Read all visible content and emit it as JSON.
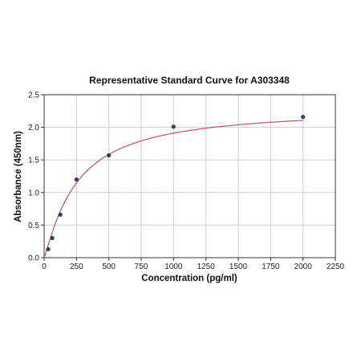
{
  "chart_data": {
    "type": "scatter",
    "title": "Representative Standard Curve for A303348",
    "xlabel": "Concentration (pg/ml)",
    "ylabel": "Absorbance (450nm)",
    "xlim": [
      0,
      2250
    ],
    "ylim": [
      0,
      2.5
    ],
    "xticks": [
      0,
      250,
      500,
      750,
      1000,
      1250,
      1500,
      1750,
      2000,
      2250
    ],
    "yticks": [
      0.0,
      0.5,
      1.0,
      1.5,
      2.0,
      2.5
    ],
    "xtick_labels": [
      "0",
      "250",
      "500",
      "750",
      "1000",
      "1250",
      "1500",
      "1750",
      "2000",
      "2250"
    ],
    "ytick_labels": [
      "0.0",
      "0.5",
      "1.0",
      "1.5",
      "2.0",
      "2.5"
    ],
    "grid": true,
    "points": {
      "x": [
        31.25,
        62.5,
        125,
        250,
        500,
        1000,
        2000
      ],
      "y": [
        0.13,
        0.3,
        0.66,
        1.2,
        1.57,
        2.01,
        2.16
      ]
    },
    "fit_curve": {
      "model": "4PL",
      "bottom": 0.0,
      "top": 2.3,
      "ec50": 251,
      "hill": 1.15
    },
    "colors": {
      "points": "#2e3e66",
      "curve": "#c0506a"
    }
  }
}
